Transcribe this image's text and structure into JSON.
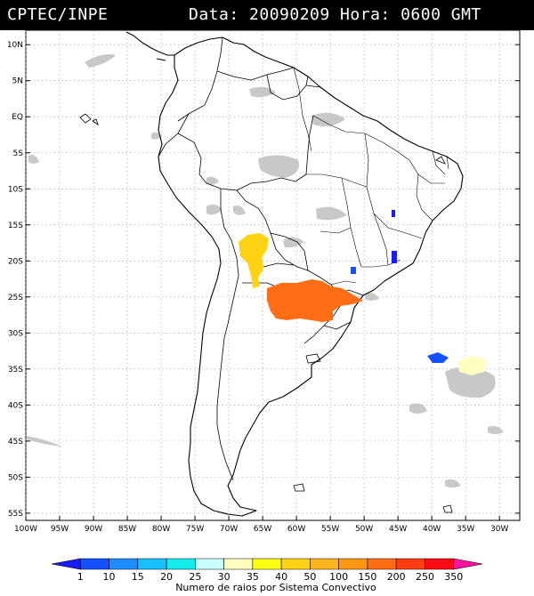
{
  "header": {
    "source": "CPTEC/INPE",
    "datetime": "Data: 20090209 Hora: 0600 GMT"
  },
  "map": {
    "lat_labels": [
      "10N",
      "5N",
      "EQ",
      "5S",
      "10S",
      "15S",
      "20S",
      "25S",
      "30S",
      "35S",
      "40S",
      "45S",
      "50S",
      "55S"
    ],
    "lon_labels": [
      "100W",
      "95W",
      "90W",
      "85W",
      "80W",
      "75W",
      "70W",
      "65W",
      "60W",
      "55W",
      "50W",
      "45W",
      "40W",
      "35W",
      "30W"
    ],
    "lat_range": [
      12,
      -56
    ],
    "lon_range": [
      -100,
      -27
    ]
  },
  "colorbar": {
    "labels": [
      "1",
      "10",
      "15",
      "20",
      "25",
      "30",
      "35",
      "40",
      "50",
      "100",
      "150",
      "200",
      "250",
      "350"
    ],
    "colors": [
      "#1a1aff",
      "#1450ff",
      "#1e8cff",
      "#18c0ff",
      "#14ecec",
      "#c8ffff",
      "#ffffc0",
      "#ffff14",
      "#ffd214",
      "#ffb41e",
      "#ff9614",
      "#ff6e14",
      "#ff3c14",
      "#ff0a14",
      "#ff14a0"
    ],
    "title": "Numero de raios por Sistema Convectivo"
  }
}
